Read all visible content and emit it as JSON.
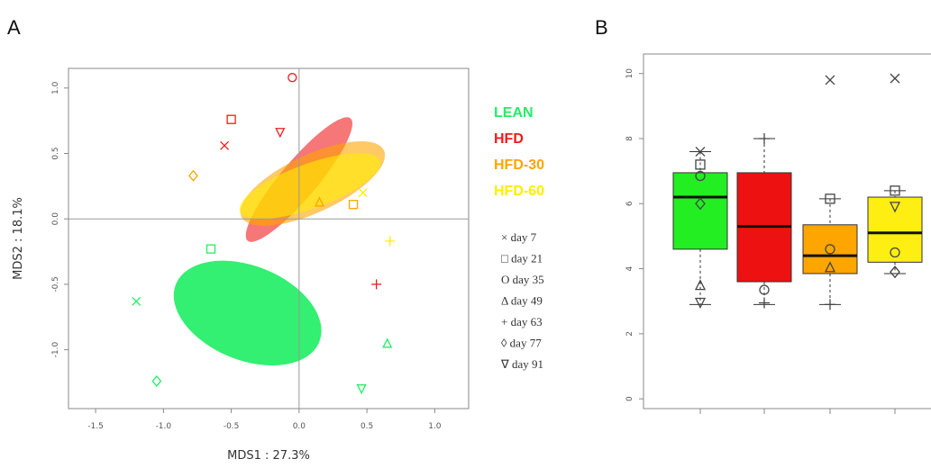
{
  "chart_data": [
    {
      "panel": "A",
      "type": "scatter",
      "xlabel": "MDS1 : 27.3%",
      "ylabel": "MDS2 : 18.1%",
      "xlim": [
        -1.7,
        1.25
      ],
      "ylim": [
        -1.45,
        1.15
      ],
      "xticks": [
        "-1.5",
        "-1.0",
        "-0.5",
        "0.0",
        "0.5",
        "1.0"
      ],
      "yticks": [
        "-1.0",
        "-0.5",
        "0.0",
        "0.5",
        "1.0"
      ],
      "reference_lines": {
        "x": 0,
        "y": 0
      },
      "groups": [
        {
          "name": "LEAN",
          "color": "#22ee66"
        },
        {
          "name": "HFD",
          "color": "#ee1c1c"
        },
        {
          "name": "HFD-30",
          "color": "#ffa500"
        },
        {
          "name": "HFD-60",
          "color": "#ffee00"
        }
      ],
      "day_legend": [
        {
          "symbol": "×",
          "label": "day 7"
        },
        {
          "symbol": "□",
          "label": "day 21"
        },
        {
          "symbol": "O",
          "label": "day 35"
        },
        {
          "symbol": "Δ",
          "label": "day 49"
        },
        {
          "symbol": "+",
          "label": "day 63"
        },
        {
          "symbol": "◊",
          "label": "day 77"
        },
        {
          "symbol": "∇",
          "label": "day 91"
        }
      ],
      "ellipses": [
        {
          "group": "LEAN",
          "cx": -0.38,
          "cy": -0.72,
          "rx": 0.57,
          "ry": 0.36,
          "angle": 22
        },
        {
          "group": "HFD",
          "cx": 0.0,
          "cy": 0.3,
          "rx": 0.59,
          "ry": 0.14,
          "angle": -50
        },
        {
          "group": "HFD-30",
          "cx": 0.1,
          "cy": 0.27,
          "rx": 0.58,
          "ry": 0.22,
          "angle": -25
        },
        {
          "group": "HFD-60",
          "cx": 0.08,
          "cy": 0.25,
          "rx": 0.55,
          "ry": 0.17,
          "angle": -20
        }
      ],
      "points": [
        {
          "group": "LEAN",
          "day": 7,
          "x": -1.2,
          "y": -0.63
        },
        {
          "group": "LEAN",
          "day": 21,
          "x": -0.65,
          "y": -0.23
        },
        {
          "group": "LEAN",
          "day": 49,
          "x": 0.65,
          "y": -0.95
        },
        {
          "group": "LEAN",
          "day": 77,
          "x": -1.05,
          "y": -1.24
        },
        {
          "group": "LEAN",
          "day": 91,
          "x": 0.46,
          "y": -1.3
        },
        {
          "group": "HFD",
          "day": 7,
          "x": -0.55,
          "y": 0.56
        },
        {
          "group": "HFD",
          "day": 21,
          "x": -0.5,
          "y": 0.76
        },
        {
          "group": "HFD",
          "day": 35,
          "x": -0.05,
          "y": 1.08
        },
        {
          "group": "HFD",
          "day": 63,
          "x": 0.57,
          "y": -0.5
        },
        {
          "group": "HFD",
          "day": 91,
          "x": -0.14,
          "y": 0.66
        },
        {
          "group": "HFD-30",
          "day": 21,
          "x": 0.4,
          "y": 0.11
        },
        {
          "group": "HFD-30",
          "day": 49,
          "x": 0.15,
          "y": 0.13
        },
        {
          "group": "HFD-30",
          "day": 77,
          "x": -0.78,
          "y": 0.33
        },
        {
          "group": "HFD-60",
          "day": 7,
          "x": 0.47,
          "y": 0.2
        },
        {
          "group": "HFD-60",
          "day": 63,
          "x": 0.67,
          "y": -0.17
        }
      ]
    },
    {
      "panel": "B",
      "type": "box",
      "ylim": [
        -0.3,
        10.6
      ],
      "yticks": [
        "0",
        "2",
        "4",
        "6",
        "8",
        "10"
      ],
      "boxes": [
        {
          "group": "LEAN",
          "color": "#22ee22",
          "whisker_low": 2.9,
          "q1": 4.6,
          "median": 6.2,
          "q3": 6.95,
          "whisker_high": 7.6,
          "points": [
            {
              "day": 7,
              "y": 7.6
            },
            {
              "day": 21,
              "y": 7.2
            },
            {
              "day": 35,
              "y": 6.85
            },
            {
              "day": 77,
              "y": 6.0
            },
            {
              "day": 49,
              "y": 3.5
            },
            {
              "day": 91,
              "y": 2.95
            }
          ]
        },
        {
          "group": "HFD",
          "color": "#ee1111",
          "whisker_low": 2.9,
          "q1": 3.6,
          "median": 5.3,
          "q3": 6.95,
          "whisker_high": 8.0,
          "points": [
            {
              "day": 63,
              "y": 8.0
            },
            {
              "day": 35,
              "y": 3.35
            },
            {
              "day": 63,
              "y": 2.95
            }
          ]
        },
        {
          "group": "HFD-30",
          "color": "#ffa500",
          "whisker_low": 2.9,
          "q1": 3.85,
          "median": 4.4,
          "q3": 5.35,
          "whisker_high": 6.15,
          "points": [
            {
              "day": 7,
              "y": 9.8
            },
            {
              "day": 21,
              "y": 6.15
            },
            {
              "day": 35,
              "y": 4.6
            },
            {
              "day": 49,
              "y": 4.05
            },
            {
              "day": 63,
              "y": 2.9
            }
          ]
        },
        {
          "group": "HFD-60",
          "color": "#ffee11",
          "whisker_low": 3.85,
          "q1": 4.2,
          "median": 5.1,
          "q3": 6.2,
          "whisker_high": 6.4,
          "points": [
            {
              "day": 7,
              "y": 9.85
            },
            {
              "day": 21,
              "y": 6.4
            },
            {
              "day": 91,
              "y": 5.9
            },
            {
              "day": 35,
              "y": 4.5
            },
            {
              "day": 77,
              "y": 3.9
            }
          ]
        }
      ]
    }
  ]
}
